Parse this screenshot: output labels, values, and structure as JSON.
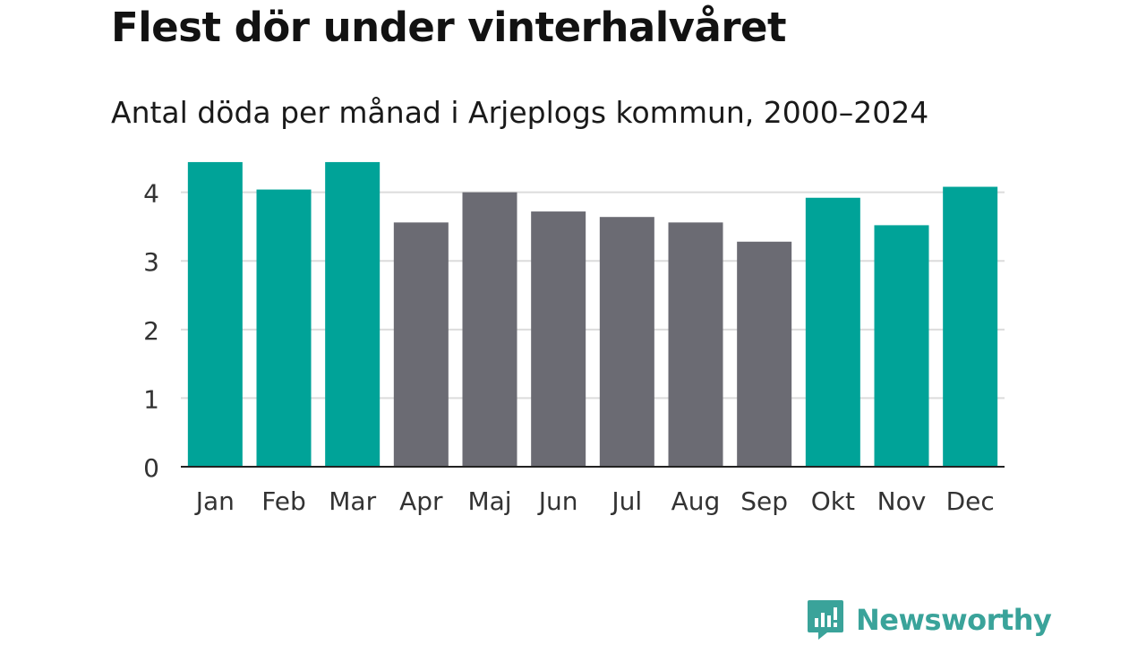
{
  "title": "Flest dör under vinterhalvåret",
  "subtitle": "Antal döda per månad i Arjeplogs kommun, 2000–2024",
  "brand": {
    "name": "Newsworthy",
    "icon": "newsworthy-logo-icon",
    "color": "#3aa39a"
  },
  "colors": {
    "winter": "#00a398",
    "summer": "#6b6b73",
    "grid": "#dcdcdc",
    "axis": "#222222",
    "text": "#333333"
  },
  "chart_data": {
    "type": "bar",
    "title": "Flest dör under vinterhalvåret",
    "subtitle": "Antal döda per månad i Arjeplogs kommun, 2000–2024",
    "xlabel": "",
    "ylabel": "",
    "categories": [
      "Jan",
      "Feb",
      "Mar",
      "Apr",
      "Maj",
      "Jun",
      "Jul",
      "Aug",
      "Sep",
      "Okt",
      "Nov",
      "Dec"
    ],
    "values": [
      4.44,
      4.04,
      4.44,
      3.56,
      4.0,
      3.72,
      3.64,
      3.56,
      3.28,
      3.92,
      3.52,
      4.08
    ],
    "season": [
      "winter",
      "winter",
      "winter",
      "summer",
      "summer",
      "summer",
      "summer",
      "summer",
      "summer",
      "winter",
      "winter",
      "winter"
    ],
    "ylim": [
      0,
      4.4
    ],
    "yticks": [
      0,
      1,
      2,
      3,
      4
    ],
    "grid": true
  }
}
